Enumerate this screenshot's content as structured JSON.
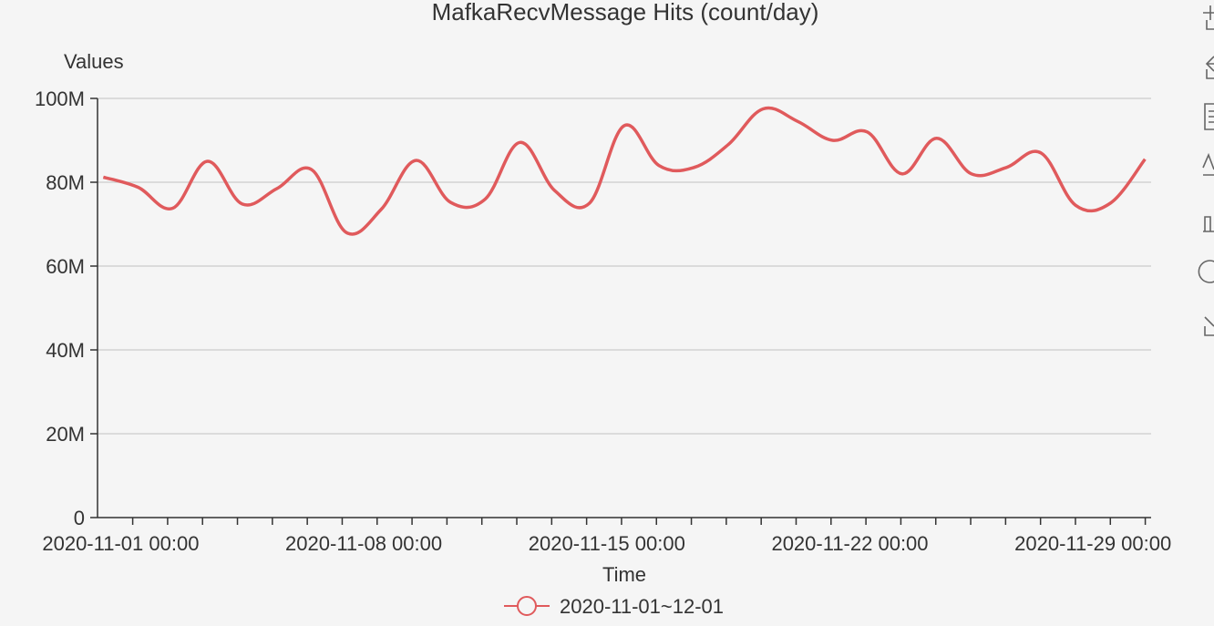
{
  "chart_data": {
    "type": "line",
    "title": "MafkaRecvMessage Hits (count/day)",
    "ylabel": "Values",
    "xlabel": "Time",
    "ylim": [
      0,
      100000000
    ],
    "y_ticks": [
      "0",
      "20M",
      "40M",
      "60M",
      "80M",
      "100M"
    ],
    "x_tick_labels": [
      "2020-11-01 00:00",
      "2020-11-08 00:00",
      "2020-11-15 00:00",
      "2020-11-22 00:00",
      "2020-11-29 00:00"
    ],
    "grid": true,
    "legend": "bottom",
    "series": [
      {
        "name": "2020-11-01~12-01",
        "color": "#e05a5c",
        "x": [
          "2020-10-31 12:00",
          "2020-11-01 12:00",
          "2020-11-02 12:00",
          "2020-11-03 12:00",
          "2020-11-04 12:00",
          "2020-11-05 12:00",
          "2020-11-06 12:00",
          "2020-11-07 12:00",
          "2020-11-08 12:00",
          "2020-11-09 12:00",
          "2020-11-10 12:00",
          "2020-11-11 12:00",
          "2020-11-12 12:00",
          "2020-11-13 12:00",
          "2020-11-14 12:00",
          "2020-11-15 12:00",
          "2020-11-16 12:00",
          "2020-11-17 12:00",
          "2020-11-18 12:00",
          "2020-11-19 12:00",
          "2020-11-20 12:00",
          "2020-11-21 12:00",
          "2020-11-22 12:00",
          "2020-11-23 12:00",
          "2020-11-24 12:00",
          "2020-11-25 12:00",
          "2020-11-26 12:00",
          "2020-11-27 12:00",
          "2020-11-28 12:00",
          "2020-11-29 12:00",
          "2020-11-30 12:00"
        ],
        "values": [
          81200000,
          78800000,
          73800000,
          85000000,
          74800000,
          78500000,
          83000000,
          68000000,
          73500000,
          85200000,
          75200000,
          76000000,
          89500000,
          78000000,
          75000000,
          93500000,
          84000000,
          83500000,
          89000000,
          97500000,
          94500000,
          90000000,
          92000000,
          82000000,
          90500000,
          82000000,
          83500000,
          87000000,
          74500000,
          75000000,
          85500000
        ]
      }
    ]
  },
  "toolbox": {
    "icons": [
      "zoom-icon",
      "zoom-reset-icon",
      "data-view-icon",
      "line-chart-icon",
      "bar-chart-icon",
      "restore-icon",
      "download-icon"
    ]
  }
}
